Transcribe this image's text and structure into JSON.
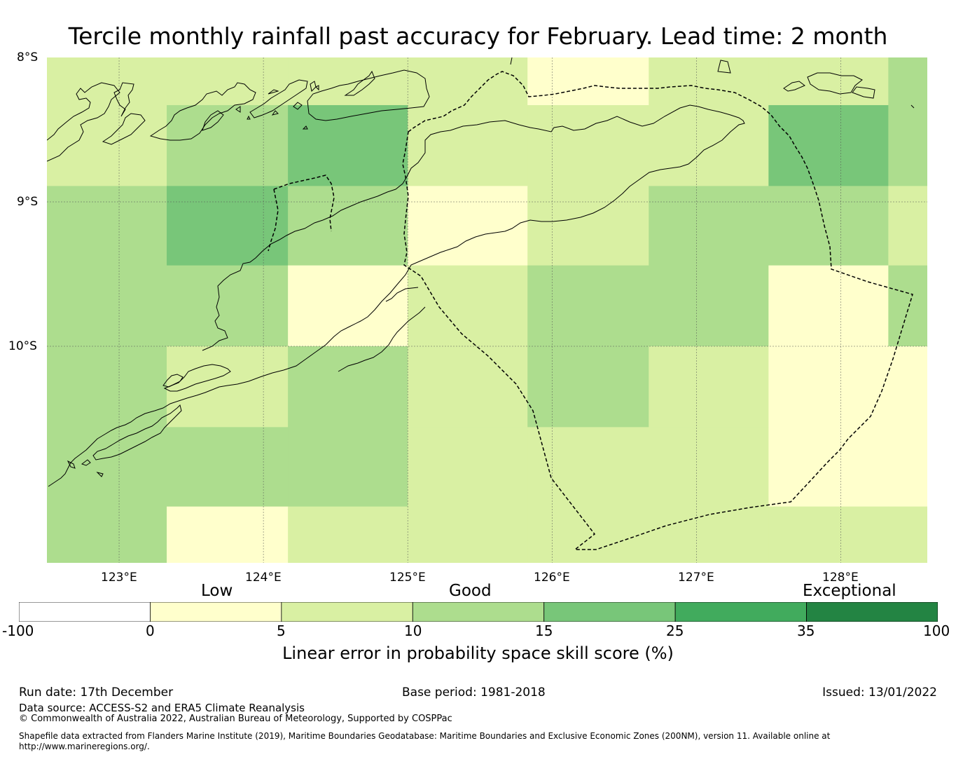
{
  "title": "Tercile monthly rainfall past accuracy for February. Lead time: 2 month",
  "map": {
    "lat_labels": [
      "8°S",
      "9°S",
      "10°S"
    ],
    "lon_labels": [
      "123°E",
      "124°E",
      "125°E",
      "126°E",
      "127°E",
      "128°E"
    ],
    "lat_range": [
      -8,
      -11.5
    ],
    "lon_range": [
      122.5,
      128.6
    ],
    "grid_lon_edges": [
      122.5,
      123.33,
      124.17,
      125.0,
      125.83,
      126.67,
      127.5,
      128.33,
      128.6
    ],
    "grid_lat_edges": [
      -8.0,
      -8.33,
      -8.89,
      -9.44,
      -10.0,
      -10.56,
      -11.11,
      -11.5
    ],
    "cells": [
      [
        2,
        2,
        2,
        2,
        1,
        2,
        2,
        3
      ],
      [
        2,
        3,
        4,
        2,
        2,
        2,
        4,
        3
      ],
      [
        3,
        4,
        3,
        1,
        2,
        3,
        3,
        2
      ],
      [
        3,
        3,
        1,
        2,
        3,
        3,
        1,
        3
      ],
      [
        3,
        2,
        3,
        2,
        3,
        2,
        1,
        1
      ],
      [
        3,
        3,
        3,
        2,
        2,
        2,
        1,
        1
      ],
      [
        3,
        1,
        2,
        2,
        2,
        2,
        2,
        2
      ]
    ]
  },
  "colorbar": {
    "categories": [
      "Low",
      "Good",
      "Exceptional"
    ],
    "ticks": [
      "-100",
      "0",
      "5",
      "10",
      "15",
      "25",
      "35",
      "100"
    ],
    "colors": [
      "#ffffff",
      "#ffffcc",
      "#d9f0a3",
      "#addd8e",
      "#78c679",
      "#41ab5d",
      "#238443"
    ],
    "label": "Linear error in probability space skill score (%)"
  },
  "footer": {
    "run_date": "Run date: 17th December",
    "base_period": "Base period: 1981-2018",
    "issued": "Issued: 13/01/2022",
    "data_source": "Data source: ACCESS-S2 and ERA5 Climate Reanalysis",
    "copyright": "© Commonwealth of Australia 2022, Australian Bureau of Meteorology, Supported by COSPPac",
    "shapefile_line1": "Shapefile data extracted from Flanders Marine Institute (2019), Maritime Boundaries Geodatabase: Maritime Boundaries and Exclusive Economic Zones (200NM), version 11. Available online at",
    "shapefile_line2": "http://www.marineregions.org/."
  }
}
